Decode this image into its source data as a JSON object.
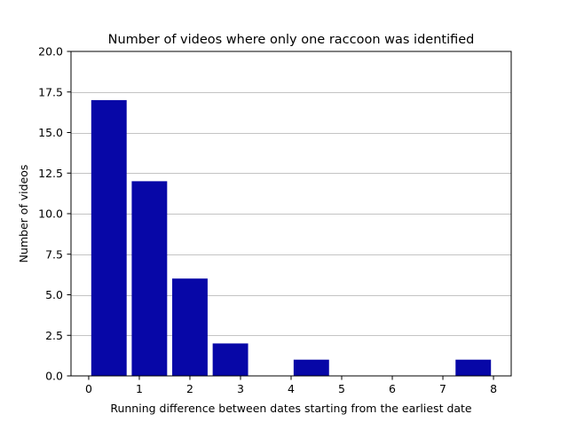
{
  "chart_data": {
    "type": "bar",
    "title": "Number of videos where only one raccoon was identified",
    "xlabel": "Running difference between dates starting from the earliest date",
    "ylabel": "Number of videos",
    "bar_color": "#0707a7",
    "grid": "horizontal",
    "xlim": [
      -0.35,
      8.35
    ],
    "ylim": [
      0,
      20
    ],
    "xticks": [
      0,
      1,
      2,
      3,
      4,
      5,
      6,
      7,
      8
    ],
    "yticks": [
      0.0,
      2.5,
      5.0,
      7.5,
      10.0,
      12.5,
      15.0,
      17.5,
      20.0
    ],
    "xtick_labels": [
      "0",
      "1",
      "2",
      "3",
      "4",
      "5",
      "6",
      "7",
      "8"
    ],
    "ytick_labels": [
      "0.0",
      "2.5",
      "5.0",
      "7.5",
      "10.0",
      "12.5",
      "15.0",
      "17.5",
      "20.0"
    ],
    "bars": [
      {
        "x0": 0.05,
        "x1": 0.75,
        "value": 17
      },
      {
        "x0": 0.85,
        "x1": 1.55,
        "value": 12
      },
      {
        "x0": 1.65,
        "x1": 2.35,
        "value": 6
      },
      {
        "x0": 2.45,
        "x1": 3.15,
        "value": 2
      },
      {
        "x0": 4.05,
        "x1": 4.75,
        "value": 1
      },
      {
        "x0": 7.25,
        "x1": 7.95,
        "value": 1
      }
    ]
  }
}
